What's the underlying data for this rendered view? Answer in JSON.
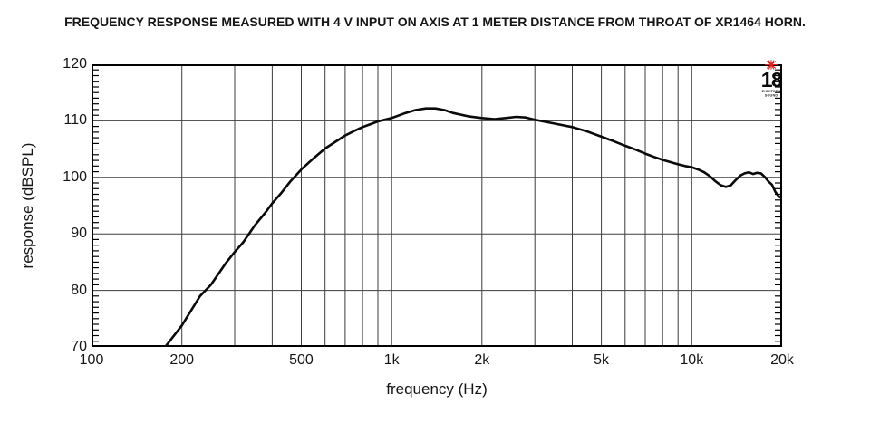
{
  "title": "FREQUENCY RESPONSE MEASURED WITH 4 V INPUT ON AXIS AT 1 METER DISTANCE FROM THROAT OF XR1464 HORN.",
  "logo": {
    "number": "18",
    "line1": "EIGHTEEN",
    "line2": "SOUND",
    "star_color": "#e32119",
    "text_color": "#0a0a0a"
  },
  "chart_data": {
    "type": "line",
    "title": "FREQUENCY RESPONSE MEASURED WITH 4 V INPUT ON AXIS AT 1 METER DISTANCE FROM THROAT OF XR1464 HORN.",
    "xlabel": "frequency (Hz)",
    "ylabel": "response (dBSPL)",
    "x_scale": "log",
    "xlim": [
      100,
      20000
    ],
    "ylim": [
      70,
      120
    ],
    "grid": true,
    "legend": "none",
    "x_ticks": [
      {
        "value": 100,
        "label": "100"
      },
      {
        "value": 200,
        "label": "200"
      },
      {
        "value": 500,
        "label": "500"
      },
      {
        "value": 1000,
        "label": "1k"
      },
      {
        "value": 2000,
        "label": "2k"
      },
      {
        "value": 5000,
        "label": "5k"
      },
      {
        "value": 10000,
        "label": "10k"
      },
      {
        "value": 20000,
        "label": "20k"
      }
    ],
    "y_ticks": [
      {
        "value": 120,
        "label": "120"
      },
      {
        "value": 110,
        "label": "110"
      },
      {
        "value": 100,
        "label": "100"
      },
      {
        "value": 90,
        "label": "90"
      },
      {
        "value": 80,
        "label": "80"
      },
      {
        "value": 70,
        "label": "70"
      }
    ],
    "x_gridlines": [
      200,
      300,
      400,
      500,
      600,
      700,
      800,
      900,
      1000,
      2000,
      3000,
      4000,
      5000,
      6000,
      7000,
      8000,
      9000,
      10000
    ],
    "y_gridlines": [
      80,
      90,
      100,
      110
    ],
    "minor_y_tick_step_db": 1,
    "colors": {
      "curve": "#0a0a0a",
      "grid": "#3d3d3d",
      "frame": "#000000",
      "background": "#ffffff"
    },
    "series": [
      {
        "name": "response",
        "points": [
          [
            176,
            70
          ],
          [
            200,
            73.8
          ],
          [
            230,
            79
          ],
          [
            250,
            81
          ],
          [
            280,
            84.8
          ],
          [
            300,
            86.8
          ],
          [
            320,
            88.5
          ],
          [
            350,
            91.5
          ],
          [
            380,
            93.8
          ],
          [
            400,
            95.4
          ],
          [
            430,
            97.3
          ],
          [
            460,
            99.3
          ],
          [
            500,
            101.4
          ],
          [
            550,
            103.4
          ],
          [
            600,
            105.1
          ],
          [
            650,
            106.3
          ],
          [
            700,
            107.4
          ],
          [
            750,
            108.2
          ],
          [
            800,
            108.9
          ],
          [
            850,
            109.4
          ],
          [
            900,
            109.9
          ],
          [
            1000,
            110.5
          ],
          [
            1100,
            111.3
          ],
          [
            1200,
            111.9
          ],
          [
            1300,
            112.2
          ],
          [
            1400,
            112.2
          ],
          [
            1500,
            111.9
          ],
          [
            1600,
            111.4
          ],
          [
            1800,
            110.8
          ],
          [
            2000,
            110.5
          ],
          [
            2200,
            110.3
          ],
          [
            2400,
            110.5
          ],
          [
            2600,
            110.7
          ],
          [
            2800,
            110.6
          ],
          [
            3000,
            110.2
          ],
          [
            3500,
            109.5
          ],
          [
            4000,
            108.9
          ],
          [
            4500,
            108.1
          ],
          [
            5000,
            107.2
          ],
          [
            5500,
            106.4
          ],
          [
            6000,
            105.6
          ],
          [
            6500,
            104.9
          ],
          [
            7000,
            104.2
          ],
          [
            7500,
            103.6
          ],
          [
            8000,
            103.1
          ],
          [
            8500,
            102.7
          ],
          [
            9000,
            102.3
          ],
          [
            9500,
            102.0
          ],
          [
            10000,
            101.8
          ],
          [
            10500,
            101.4
          ],
          [
            11000,
            100.9
          ],
          [
            11500,
            100.2
          ],
          [
            12000,
            99.3
          ],
          [
            12500,
            98.6
          ],
          [
            13000,
            98.3
          ],
          [
            13500,
            98.6
          ],
          [
            14000,
            99.5
          ],
          [
            14500,
            100.3
          ],
          [
            15000,
            100.7
          ],
          [
            15500,
            100.9
          ],
          [
            16000,
            100.6
          ],
          [
            16500,
            100.8
          ],
          [
            17000,
            100.7
          ],
          [
            17500,
            100.1
          ],
          [
            18000,
            99.3
          ],
          [
            18500,
            98.7
          ],
          [
            19000,
            97.4
          ],
          [
            19500,
            96.6
          ],
          [
            20000,
            96.3
          ]
        ]
      }
    ]
  }
}
